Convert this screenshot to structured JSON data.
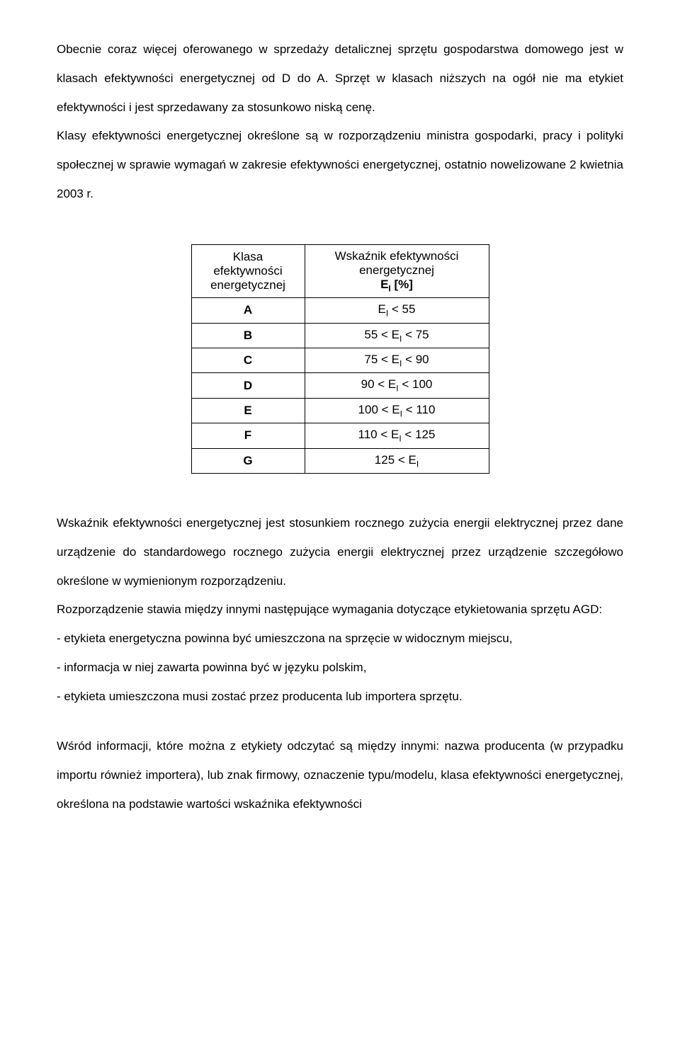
{
  "paragraphs": {
    "p1": "Obecnie coraz więcej oferowanego w sprzedaży detalicznej sprzętu gospodarstwa domowego jest w klasach efektywności energetycznej od D do A. Sprzęt w klasach niższych na ogół nie ma etykiet efektywności i jest sprzedawany za stosunkowo niską cenę.",
    "p2": "Klasy efektywności energetycznej określone są w rozporządzeniu ministra gospodarki, pracy i polityki społecznej w sprawie wymagań w zakresie efektywności energetycznej, ostatnio nowelizowane 2 kwietnia 2003 r.",
    "p3": "Wskaźnik efektywności energetycznej jest stosunkiem rocznego zużycia energii elektrycznej przez dane urządzenie do standardowego rocznego zużycia energii elektrycznej przez urządzenie szczegółowo określone w wymienionym rozporządzeniu.",
    "p4": "Rozporządzenie stawia między innymi następujące wymagania dotyczące etykietowania sprzętu AGD:",
    "li1": "- etykieta energetyczna powinna być umieszczona na sprzęcie w widocznym miejscu,",
    "li2": "- informacja w niej zawarta powinna być w języku polskim,",
    "li3": "-  etykieta umieszczona musi zostać przez producenta lub importera sprzętu.",
    "p5": "Wśród informacji, które można z etykiety odczytać są między innymi: nazwa producenta (w przypadku importu również importera), lub znak firmowy, oznaczenie typu/modelu, klasa efektywności energetycznej, określona na podstawie wartości wskaźnika efektywności"
  },
  "table": {
    "header_left_line1": "Klasa",
    "header_left_line2": "efektywności",
    "header_left_line3": "energetycznej",
    "header_right_line1": "Wskaźnik efektywności",
    "header_right_line2": "energetycznej",
    "header_right_line3_prefix": "E",
    "header_right_line3_sub": "I",
    "header_right_line3_suffix": " [%]",
    "rows": [
      {
        "class": "A",
        "prefix": "",
        "mid": "E",
        "sub": "I",
        "suffix": " < 55"
      },
      {
        "class": "B",
        "prefix": "55 < ",
        "mid": "E",
        "sub": "I",
        "suffix": " < 75"
      },
      {
        "class": "C",
        "prefix": "75 < ",
        "mid": "E",
        "sub": "I",
        "suffix": " < 90"
      },
      {
        "class": "D",
        "prefix": "90 < ",
        "mid": "E",
        "sub": "I",
        "suffix": " < 100"
      },
      {
        "class": "E",
        "prefix": "100 < ",
        "mid": "E",
        "sub": "I",
        "suffix": " < 110"
      },
      {
        "class": "F",
        "prefix": "110 < ",
        "mid": "E",
        "sub": "I",
        "suffix": " < 125"
      },
      {
        "class": "G",
        "prefix": "125 < ",
        "mid": "E",
        "sub": "I",
        "suffix": ""
      }
    ]
  }
}
